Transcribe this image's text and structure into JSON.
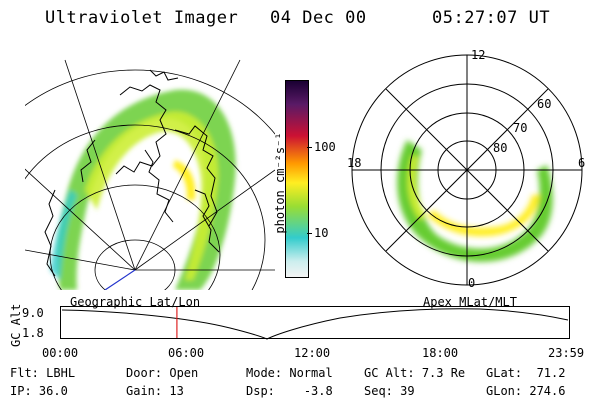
{
  "header": {
    "title": "Ultraviolet Imager",
    "date": "04 Dec 00",
    "time": "05:27:07 UT"
  },
  "colorbar": {
    "label": "photon cm⁻²s⁻¹",
    "ticks": [
      "100",
      "10"
    ]
  },
  "polar_plot": {
    "mlt_labels": [
      "12",
      "18",
      "6",
      "0"
    ],
    "lat_labels": [
      "60",
      "70",
      "80"
    ]
  },
  "map_labels": {
    "left": "Geographic Lat/Lon",
    "right": "Apex MLat/MLT"
  },
  "altitude_plot": {
    "ylabel": "GC Alt",
    "yticks": [
      "9.0",
      "1.8"
    ],
    "xticks": [
      "00:00",
      "06:00",
      "12:00",
      "18:00",
      "23:59"
    ],
    "current_time_hours": 5.45
  },
  "info": {
    "filter_label": "Flt:",
    "filter_value": "LBHL",
    "ip_label": "IP:",
    "ip_value": "36.0",
    "door_label": "Door:",
    "door_value": "Open",
    "gain_label": "Gain:",
    "gain_value": "13",
    "mode_label": "Mode:",
    "mode_value": "Normal",
    "dsp_label": "Dsp:",
    "dsp_value": "-3.8",
    "gcalt_label": "GC Alt:",
    "gcalt_value": "7.3 Re",
    "seq_label": "Seq:",
    "seq_value": "39",
    "glat_label": "GLat:",
    "glat_value": "71.2",
    "glon_label": "GLon:",
    "glon_value": "274.6"
  },
  "colors": {
    "cb_top": "#1a0033",
    "cb_red": "#cc1133",
    "cb_orange": "#ff9900",
    "cb_yellow": "#ffee22",
    "cb_green": "#66cc33",
    "cb_cyan": "#33cccc",
    "cb_bottom": "#f4f4f4",
    "time_marker": "#dd2222"
  }
}
